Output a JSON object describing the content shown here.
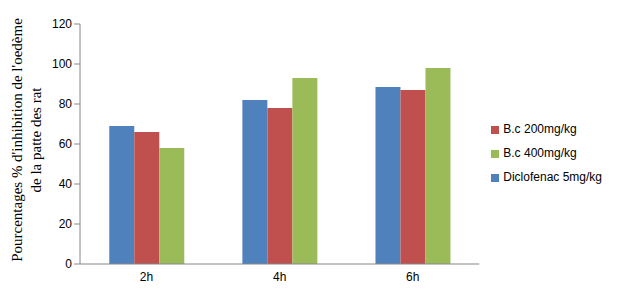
{
  "chart_data": {
    "type": "bar",
    "y_label": "Pourcentages % d'inhibition de l'oedème de la patte des rat",
    "categories": [
      "2h",
      "4h",
      "6h"
    ],
    "series": [
      {
        "name": "Diclofenac 5mg/kg",
        "color": "#4f81bd",
        "values": [
          69,
          82,
          88.5
        ]
      },
      {
        "name": "B.c 200mg/kg",
        "color": "#c0504d",
        "values": [
          66,
          78,
          87
        ]
      },
      {
        "name": "B.c 400mg/kg",
        "color": "#9bbb59",
        "values": [
          58,
          93,
          98
        ]
      }
    ],
    "ylim": [
      0,
      120
    ],
    "yticks": [
      0,
      20,
      40,
      60,
      80,
      100,
      120
    ],
    "grid": false,
    "legend": "right"
  }
}
